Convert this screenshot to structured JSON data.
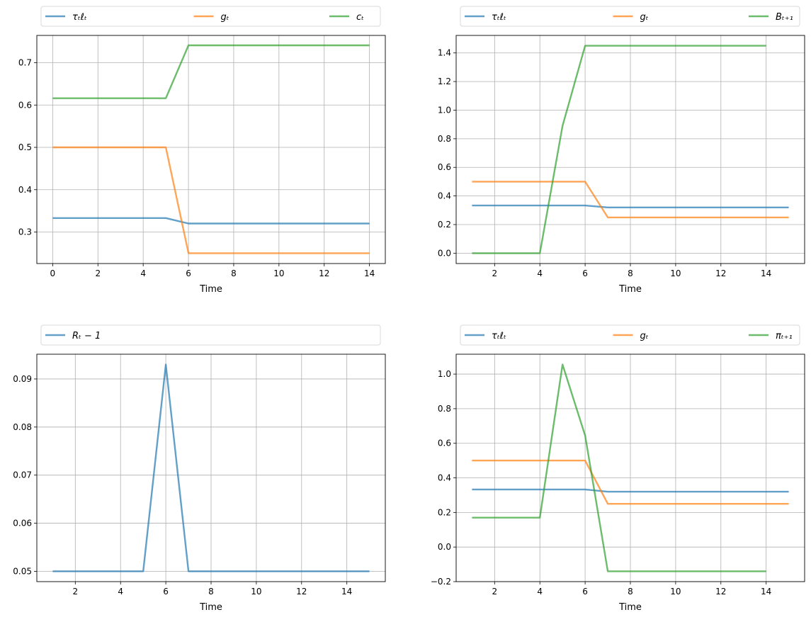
{
  "colors": {
    "blue": "#1f77b4",
    "orange": "#ff7f0e",
    "green": "#2ca02c",
    "grid": "#b0b0b0"
  },
  "chart_data": [
    {
      "type": "line",
      "xlabel": "Time",
      "xlim": [
        -0.7,
        14.7
      ],
      "ylim": [
        0.2255,
        0.7645
      ],
      "xticks": [
        0,
        2,
        4,
        6,
        8,
        10,
        12,
        14
      ],
      "yticks": [
        0.3,
        0.4,
        0.5,
        0.6,
        0.7
      ],
      "grid": true,
      "legend_placement": "top (above axes, 3 columns)",
      "series": [
        {
          "name": "τₜℓₜ",
          "color": "blue",
          "x": [
            0,
            1,
            2,
            3,
            4,
            5,
            6,
            7,
            8,
            9,
            10,
            11,
            12,
            13,
            14
          ],
          "y": [
            0.333,
            0.333,
            0.333,
            0.333,
            0.333,
            0.333,
            0.32,
            0.32,
            0.32,
            0.32,
            0.32,
            0.32,
            0.32,
            0.32,
            0.32
          ]
        },
        {
          "name": "gₜ",
          "color": "orange",
          "x": [
            0,
            1,
            2,
            3,
            4,
            5,
            6,
            7,
            8,
            9,
            10,
            11,
            12,
            13,
            14
          ],
          "y": [
            0.5,
            0.5,
            0.5,
            0.5,
            0.5,
            0.5,
            0.25,
            0.25,
            0.25,
            0.25,
            0.25,
            0.25,
            0.25,
            0.25,
            0.25
          ]
        },
        {
          "name": "cₜ",
          "color": "green",
          "x": [
            0,
            1,
            2,
            3,
            4,
            5,
            6,
            7,
            8,
            9,
            10,
            11,
            12,
            13,
            14
          ],
          "y": [
            0.616,
            0.616,
            0.616,
            0.616,
            0.616,
            0.616,
            0.741,
            0.741,
            0.741,
            0.741,
            0.741,
            0.741,
            0.741,
            0.741,
            0.741
          ]
        }
      ]
    },
    {
      "type": "line",
      "xlabel": "Time",
      "xlim": [
        0.3,
        15.7
      ],
      "ylim": [
        -0.0725,
        1.5225
      ],
      "xticks": [
        2,
        4,
        6,
        8,
        10,
        12,
        14
      ],
      "yticks": [
        0.0,
        0.2,
        0.4,
        0.6,
        0.8,
        1.0,
        1.2,
        1.4
      ],
      "grid": true,
      "legend_placement": "top (above axes, 3 columns)",
      "series": [
        {
          "name": "τₜℓₜ",
          "color": "blue",
          "x": [
            1,
            2,
            3,
            4,
            5,
            6,
            7,
            8,
            9,
            10,
            11,
            12,
            13,
            14,
            15
          ],
          "y": [
            0.333,
            0.333,
            0.333,
            0.333,
            0.333,
            0.333,
            0.32,
            0.32,
            0.32,
            0.32,
            0.32,
            0.32,
            0.32,
            0.32,
            0.32
          ]
        },
        {
          "name": "gₜ",
          "color": "orange",
          "x": [
            1,
            2,
            3,
            4,
            5,
            6,
            7,
            8,
            9,
            10,
            11,
            12,
            13,
            14,
            15
          ],
          "y": [
            0.5,
            0.5,
            0.5,
            0.5,
            0.5,
            0.5,
            0.25,
            0.25,
            0.25,
            0.25,
            0.25,
            0.25,
            0.25,
            0.25,
            0.25
          ]
        },
        {
          "name": "Bₜ₊₁",
          "color": "green",
          "x": [
            1,
            2,
            3,
            4,
            5,
            6,
            7,
            8,
            9,
            10,
            11,
            12,
            13,
            14
          ],
          "y": [
            0,
            0,
            0,
            0,
            0.89,
            1.45,
            1.45,
            1.45,
            1.45,
            1.45,
            1.45,
            1.45,
            1.45,
            1.45
          ]
        }
      ]
    },
    {
      "type": "line",
      "xlabel": "Time",
      "xlim": [
        0.3,
        15.7
      ],
      "ylim": [
        0.04785,
        0.09515
      ],
      "xticks": [
        2,
        4,
        6,
        8,
        10,
        12,
        14
      ],
      "yticks": [
        0.05,
        0.06,
        0.07,
        0.08,
        0.09
      ],
      "grid": true,
      "legend_placement": "top (above axes)",
      "series": [
        {
          "name": "Rₜ − 1",
          "color": "blue",
          "x": [
            1,
            2,
            3,
            4,
            5,
            6,
            7,
            8,
            9,
            10,
            11,
            12,
            13,
            14,
            15
          ],
          "y": [
            0.05,
            0.05,
            0.05,
            0.05,
            0.05,
            0.093,
            0.05,
            0.05,
            0.05,
            0.05,
            0.05,
            0.05,
            0.05,
            0.05,
            0.05
          ]
        }
      ]
    },
    {
      "type": "line",
      "xlabel": "Time",
      "xlim": [
        0.3,
        15.7
      ],
      "ylim": [
        -0.2,
        1.115
      ],
      "xticks": [
        2,
        4,
        6,
        8,
        10,
        12,
        14
      ],
      "yticks": [
        -0.2,
        0.0,
        0.2,
        0.4,
        0.6,
        0.8,
        1.0
      ],
      "grid": true,
      "legend_placement": "top (above axes, 3 columns)",
      "series": [
        {
          "name": "τₜℓₜ",
          "color": "blue",
          "x": [
            1,
            2,
            3,
            4,
            5,
            6,
            7,
            8,
            9,
            10,
            11,
            12,
            13,
            14,
            15
          ],
          "y": [
            0.333,
            0.333,
            0.333,
            0.333,
            0.333,
            0.333,
            0.32,
            0.32,
            0.32,
            0.32,
            0.32,
            0.32,
            0.32,
            0.32,
            0.32
          ]
        },
        {
          "name": "gₜ",
          "color": "orange",
          "x": [
            1,
            2,
            3,
            4,
            5,
            6,
            7,
            8,
            9,
            10,
            11,
            12,
            13,
            14,
            15
          ],
          "y": [
            0.5,
            0.5,
            0.5,
            0.5,
            0.5,
            0.5,
            0.25,
            0.25,
            0.25,
            0.25,
            0.25,
            0.25,
            0.25,
            0.25,
            0.25
          ]
        },
        {
          "name": "πₜ₊₁",
          "color": "green",
          "x": [
            1,
            2,
            3,
            4,
            5,
            6,
            7,
            8,
            9,
            10,
            11,
            12,
            13,
            14
          ],
          "y": [
            0.17,
            0.17,
            0.17,
            0.17,
            1.055,
            0.645,
            -0.14,
            -0.14,
            -0.14,
            -0.14,
            -0.14,
            -0.14,
            -0.14,
            -0.14
          ]
        }
      ]
    }
  ]
}
